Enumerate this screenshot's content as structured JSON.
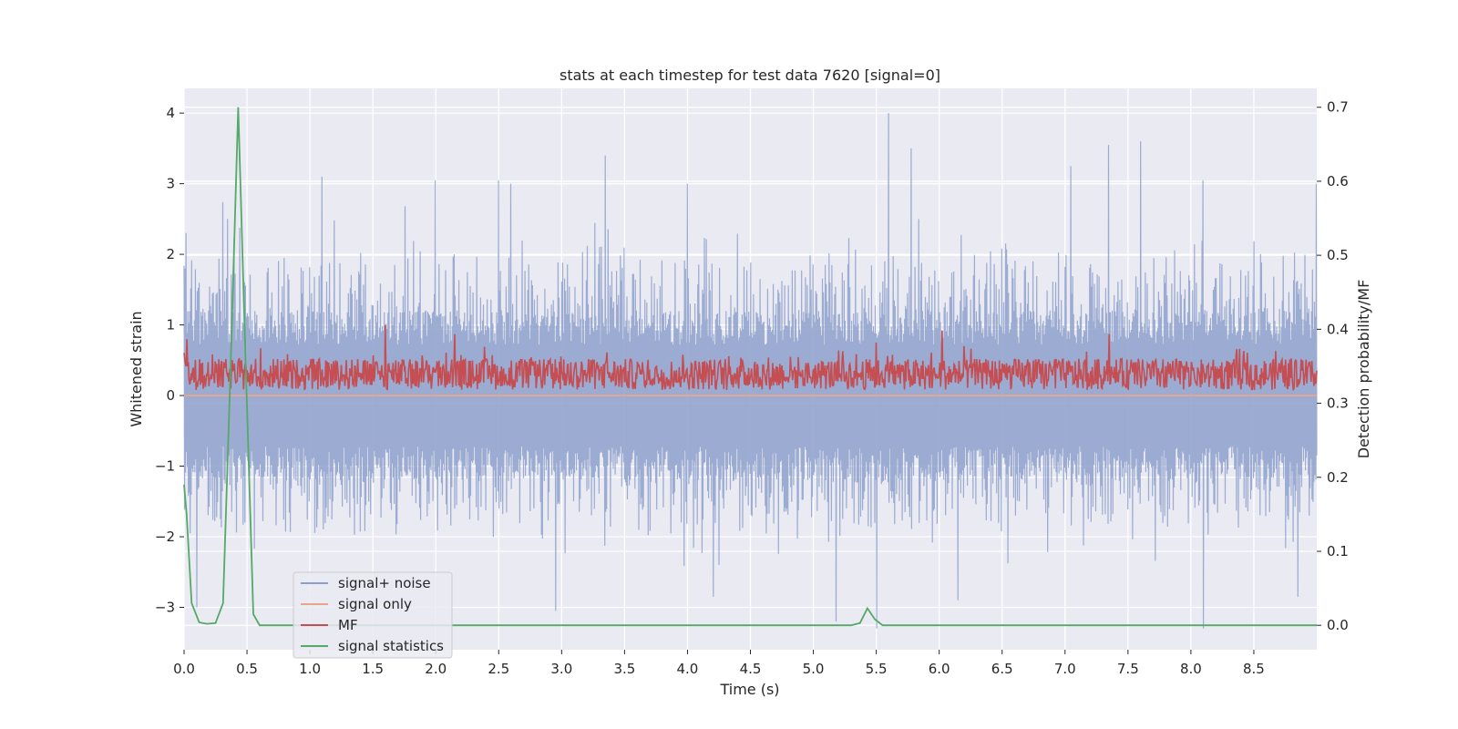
{
  "chart_data": {
    "type": "line",
    "title": "stats at each timestep for test data 7620 [signal=0]",
    "xlabel": "Time (s)",
    "ylabel": "Whitened strain",
    "ylabel_right": "Detection probability/MF",
    "xlim": [
      0.0,
      9.0
    ],
    "ylim": [
      -3.6,
      4.35
    ],
    "ylim_right": [
      -0.033,
      0.7255
    ],
    "x_ticks": [
      "0.0",
      "0.5",
      "1.0",
      "1.5",
      "2.0",
      "2.5",
      "3.0",
      "3.5",
      "4.0",
      "4.5",
      "5.0",
      "5.5",
      "6.0",
      "6.5",
      "7.0",
      "7.5",
      "8.0",
      "8.5"
    ],
    "y_ticks": [
      "4",
      "3",
      "2",
      "1",
      "0",
      "−1",
      "−2",
      "−3"
    ],
    "y_ticks_right": [
      "0.7",
      "0.6",
      "0.5",
      "0.4",
      "0.3",
      "0.2",
      "0.1",
      "0.0"
    ],
    "grid": true,
    "legend_position": "lower-left",
    "series": [
      {
        "name": "signal+ noise",
        "axis": "left",
        "color": "#8da0cb",
        "description": "dense noisy whitened strain",
        "peaks_pos": [
          [
            0.02,
            2.3
          ],
          [
            0.35,
            2.5
          ],
          [
            1.1,
            3.1
          ],
          [
            2.0,
            3.05
          ],
          [
            2.5,
            3.05
          ],
          [
            2.6,
            3.0
          ],
          [
            3.35,
            3.4
          ],
          [
            4.0,
            3.0
          ],
          [
            5.6,
            4.0
          ],
          [
            5.78,
            3.5
          ],
          [
            7.05,
            3.25
          ],
          [
            7.35,
            3.55
          ],
          [
            7.6,
            3.6
          ],
          [
            8.1,
            3.05
          ],
          [
            9.0,
            3.0
          ]
        ],
        "peaks_neg": [
          [
            0.1,
            -3.0
          ],
          [
            2.95,
            -3.05
          ],
          [
            4.2,
            -2.85
          ],
          [
            5.18,
            -3.2
          ],
          [
            5.5,
            -3.3
          ],
          [
            6.15,
            -2.9
          ],
          [
            8.1,
            -3.3
          ],
          [
            8.85,
            -2.85
          ]
        ],
        "band_pos": 1.2,
        "band_neg": -1.2
      },
      {
        "name": "signal only",
        "axis": "left",
        "color": "#e8a58a",
        "values_constant": 0.0
      },
      {
        "name": "MF",
        "axis": "left",
        "color": "#c44e52",
        "mean": 0.3,
        "amplitude": 0.22,
        "peaks": [
          [
            0.02,
            0.8
          ],
          [
            1.6,
            1.0
          ],
          [
            2.15,
            0.87
          ],
          [
            5.5,
            0.75
          ],
          [
            6.02,
            0.92
          ],
          [
            7.35,
            0.87
          ]
        ]
      },
      {
        "name": "signal statistics",
        "axis": "right",
        "color": "#55a868",
        "x": [
          0.0,
          0.02,
          0.06,
          0.12,
          0.18,
          0.25,
          0.31,
          0.37,
          0.43,
          0.49,
          0.55,
          0.6,
          1.0,
          2.0,
          3.0,
          4.0,
          5.0,
          5.3,
          5.37,
          5.43,
          5.49,
          5.55,
          5.6,
          6.0,
          7.0,
          8.0,
          9.0
        ],
        "values": [
          0.19,
          0.15,
          0.03,
          0.004,
          0.002,
          0.003,
          0.03,
          0.35,
          0.7,
          0.35,
          0.015,
          0.0,
          0.0,
          0.0,
          0.0,
          0.0,
          0.0,
          0.0,
          0.003,
          0.023,
          0.008,
          0.0,
          0.0,
          0.0,
          0.0,
          0.0,
          0.0
        ]
      }
    ]
  }
}
